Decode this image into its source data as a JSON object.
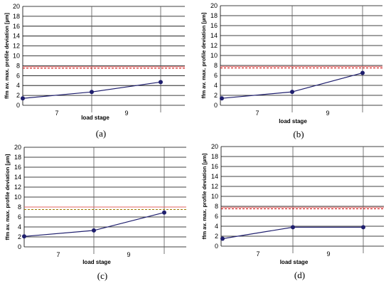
{
  "chart_data": [
    {
      "type": "line",
      "caption": "(a)",
      "xlabel": "load stage",
      "ylabel": "ffm av. max. profile deviation [µm]",
      "ylim": [
        0,
        20
      ],
      "yticks": [
        0,
        2,
        4,
        6,
        8,
        10,
        12,
        14,
        16,
        18,
        20
      ],
      "x_tick_labels": [
        "7",
        "9"
      ],
      "series": [
        {
          "values": [
            1.4,
            2.7,
            4.7
          ],
          "color": "#1f1f6e"
        }
      ],
      "reference_lines": [
        {
          "value": 7.8,
          "style": "solid",
          "color": "#e06666"
        },
        {
          "value": 7.5,
          "style": "dashed",
          "color": "#cc0000"
        }
      ],
      "grid": true
    },
    {
      "type": "line",
      "caption": "(b)",
      "xlabel": "load stage",
      "ylabel": "ffm av. max. profile deviation [µm]",
      "ylim": [
        0,
        20
      ],
      "yticks": [
        0,
        2,
        4,
        6,
        8,
        10,
        12,
        14,
        16,
        18,
        20
      ],
      "x_tick_labels": [
        "7",
        "9"
      ],
      "series": [
        {
          "values": [
            1.4,
            2.7,
            6.5
          ],
          "color": "#1f1f6e"
        }
      ],
      "reference_lines": [
        {
          "value": 7.8,
          "style": "solid",
          "color": "#e06666"
        },
        {
          "value": 7.5,
          "style": "dashed",
          "color": "#cc0000"
        }
      ],
      "grid": true
    },
    {
      "type": "line",
      "caption": "(c)",
      "xlabel": "load stage",
      "ylabel": "ffm av. max. profile deviation [µm]",
      "ylim": [
        0,
        20
      ],
      "yticks": [
        0,
        2,
        4,
        6,
        8,
        10,
        12,
        14,
        16,
        18,
        20
      ],
      "x_tick_labels": [
        "7",
        "9"
      ],
      "series": [
        {
          "values": [
            2.1,
            3.3,
            6.9
          ],
          "color": "#1f1f6e"
        }
      ],
      "reference_lines": [
        {
          "value": 8.0,
          "style": "solid",
          "color": "#e06666"
        },
        {
          "value": 7.5,
          "style": "dashed",
          "color": "#997a00"
        }
      ],
      "grid": true
    },
    {
      "type": "line",
      "caption": "(d)",
      "xlabel": "load stage",
      "ylabel": "ffm av. max. profile deviation [µm]",
      "ylim": [
        0,
        20
      ],
      "yticks": [
        0,
        2,
        4,
        6,
        8,
        10,
        12,
        14,
        16,
        18,
        20
      ],
      "x_tick_labels": [
        "7",
        "9"
      ],
      "series": [
        {
          "values": [
            1.5,
            3.8,
            3.8
          ],
          "color": "#1f1f6e"
        }
      ],
      "reference_lines": [
        {
          "value": 7.8,
          "style": "solid",
          "color": "#e06666"
        },
        {
          "value": 7.5,
          "style": "dashed",
          "color": "#cc0000"
        }
      ],
      "grid": true
    }
  ]
}
